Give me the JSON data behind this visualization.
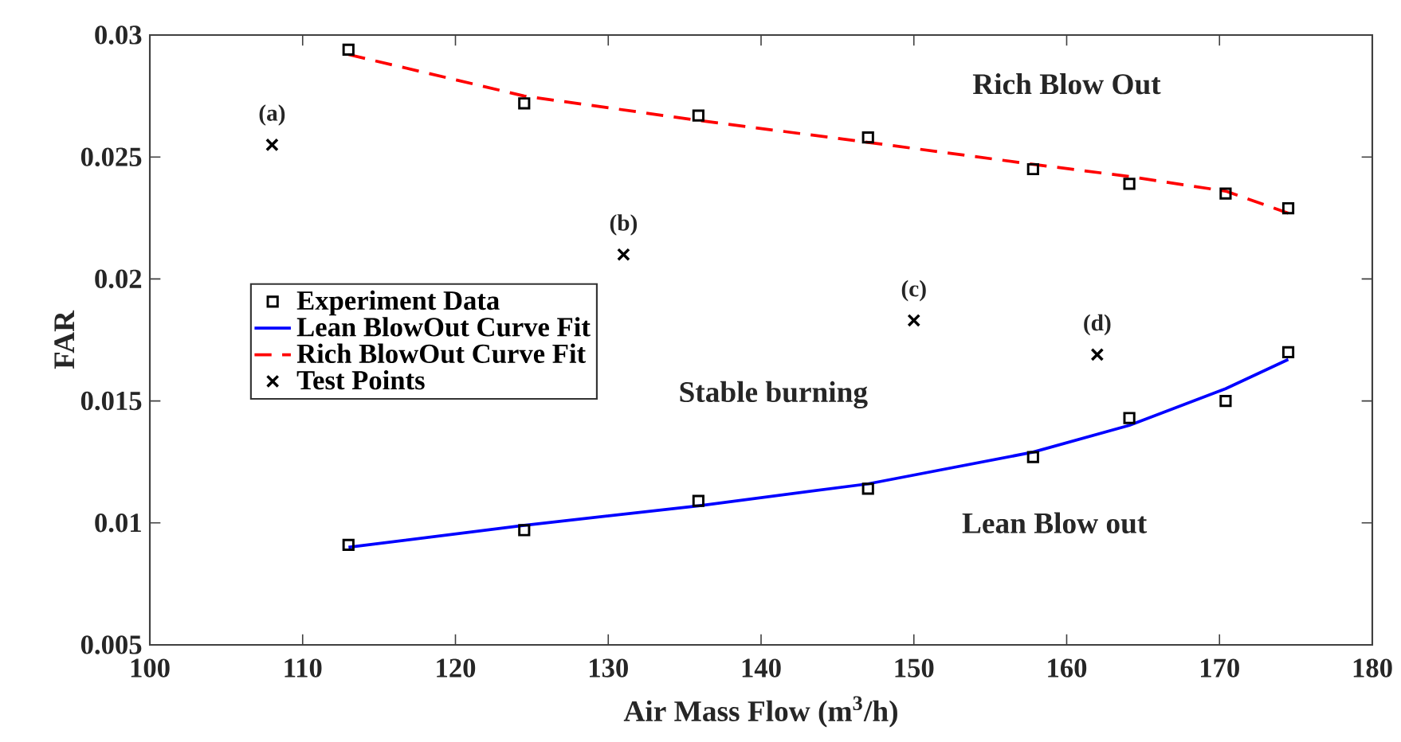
{
  "chart_data": {
    "type": "scatter",
    "xlabel": "Air Mass Flow (m$^{3}$/h)",
    "ylabel": "FAR",
    "xlim": [
      100,
      180
    ],
    "xticks": [
      100,
      110,
      120,
      130,
      140,
      150,
      160,
      170,
      180
    ],
    "ylim": [
      0.005,
      0.03
    ],
    "yticks": [
      0.005,
      0.01,
      0.015,
      0.02,
      0.025,
      0.03
    ],
    "grid": false,
    "legend": "left",
    "series": [
      {
        "name": "Experiment Data",
        "color": "#000000",
        "marker": "square",
        "x": [
          113,
          124.5,
          135.9,
          147,
          157.8,
          164.1,
          170.4,
          174.5,
          113,
          124.5,
          135.9,
          147,
          157.8,
          164.1,
          170.4,
          174.5
        ],
        "values": [
          0.0294,
          0.0272,
          0.0267,
          0.0258,
          0.0245,
          0.0239,
          0.0235,
          0.0229,
          0.0091,
          0.0097,
          0.0109,
          0.0114,
          0.0127,
          0.0143,
          0.015,
          0.017
        ]
      },
      {
        "name": "Lean BlowOut Curve Fit",
        "type": "line",
        "color": "#0000ff",
        "marker": "none",
        "line_style": "solid",
        "x": [
          113,
          124.5,
          135.9,
          147,
          157.8,
          164.1,
          170.4,
          174.5
        ],
        "values": [
          0.009,
          0.0099,
          0.0107,
          0.0116,
          0.0129,
          0.014,
          0.0155,
          0.0167
        ]
      },
      {
        "name": "Rich BlowOut Curve Fit",
        "type": "line",
        "color": "#ff0000",
        "marker": "none",
        "line_style": "dashed",
        "x": [
          113,
          124.5,
          135.9,
          147,
          157.8,
          164.1,
          170.4,
          174.5
        ],
        "values": [
          0.0292,
          0.0275,
          0.0265,
          0.0256,
          0.0247,
          0.0242,
          0.0236,
          0.0227
        ]
      },
      {
        "name": "Test Points",
        "color": "#000000",
        "marker": "cross",
        "x": [
          108,
          131,
          150,
          162
        ],
        "values": [
          0.0255,
          0.021,
          0.0183,
          0.0169
        ]
      }
    ],
    "annotations": [
      {
        "text": "(a)",
        "x": 108,
        "y": 0.0255
      },
      {
        "text": "(b)",
        "x": 131,
        "y": 0.021
      },
      {
        "text": "(c)",
        "x": 150,
        "y": 0.0183
      },
      {
        "text": "(d)",
        "x": 162,
        "y": 0.0169
      },
      "Rich Blow Out",
      "Stable burning",
      "Lean Blow out"
    ]
  }
}
